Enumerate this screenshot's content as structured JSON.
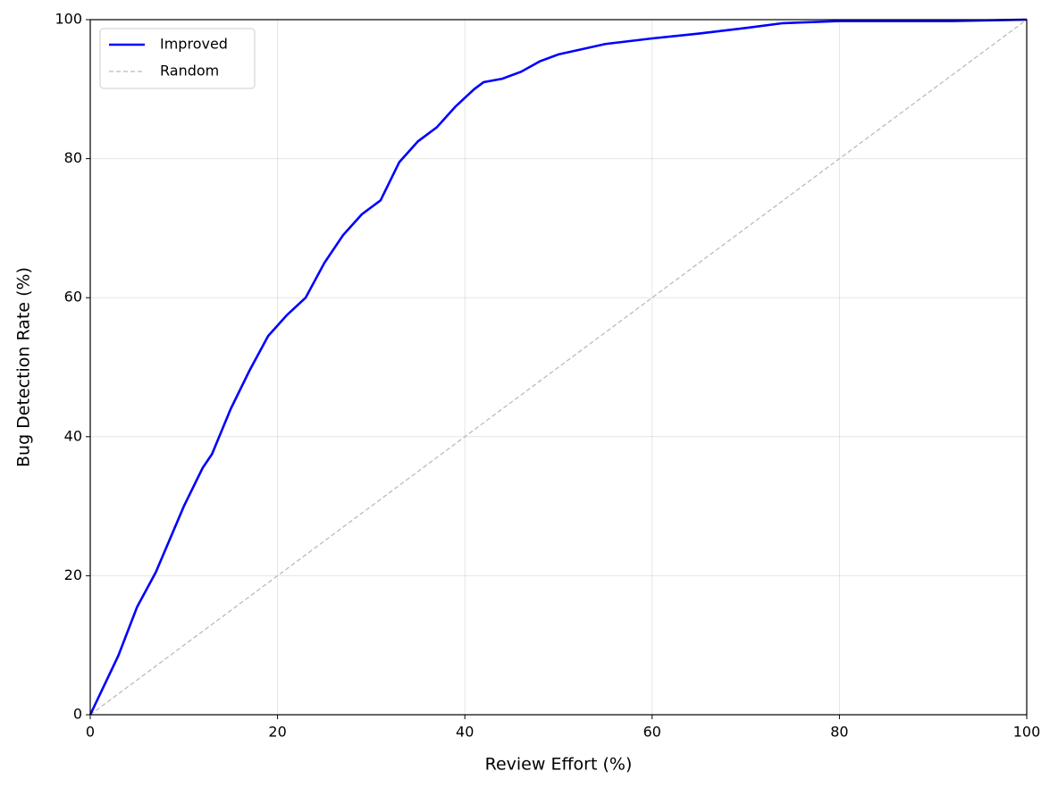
{
  "chart_data": {
    "type": "line",
    "xlabel": "Review Effort (%)",
    "ylabel": "Bug Detection Rate (%)",
    "xlim": [
      0,
      100
    ],
    "ylim": [
      0,
      100
    ],
    "xticks": [
      0,
      20,
      40,
      60,
      80,
      100
    ],
    "yticks": [
      0,
      20,
      40,
      60,
      80,
      100
    ],
    "grid": true,
    "legend": "upper left",
    "series": [
      {
        "name": "Improved",
        "color": "#0000ff",
        "style": "solid",
        "x": [
          0,
          3,
          5,
          7,
          10,
          12,
          13,
          15,
          17,
          19,
          21,
          23,
          25,
          27,
          29,
          31,
          33,
          35,
          37,
          39,
          41,
          42,
          44,
          46,
          48,
          50,
          55,
          60,
          65,
          70,
          74,
          80,
          92,
          100
        ],
        "values": [
          0,
          8.5,
          15.5,
          20.5,
          30,
          35.5,
          37.5,
          44,
          49.5,
          54.5,
          57.5,
          60,
          65,
          69,
          72,
          74,
          79.5,
          82.5,
          84.5,
          87.5,
          90,
          91,
          91.5,
          92.5,
          94,
          95,
          96.5,
          97.3,
          98,
          98.8,
          99.5,
          99.8,
          99.8,
          100
        ]
      },
      {
        "name": "Random",
        "color": "#bbbbbb",
        "style": "dashed",
        "x": [
          0,
          100
        ],
        "values": [
          0,
          100
        ]
      }
    ]
  }
}
